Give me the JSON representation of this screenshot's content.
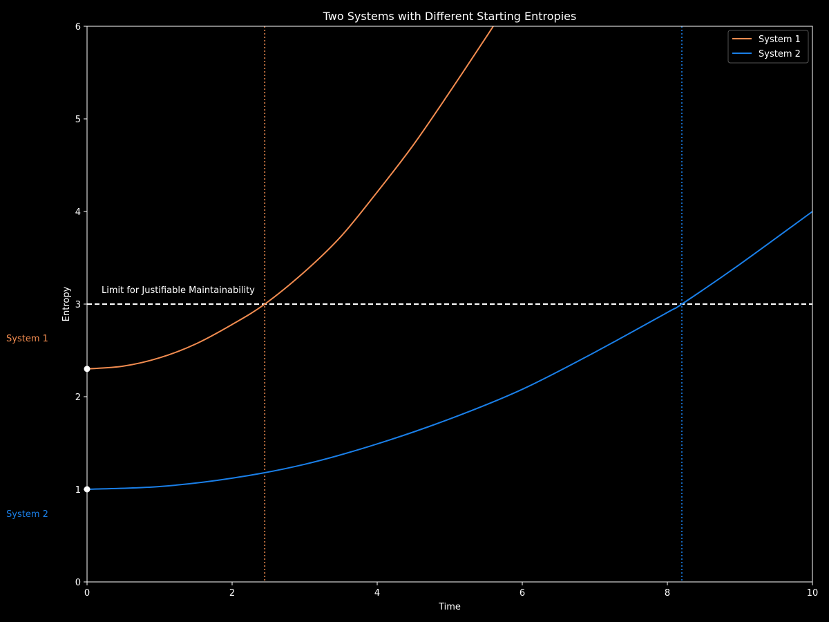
{
  "chart_data": {
    "type": "line",
    "title": "Two Systems with Different Starting Entropies",
    "xlabel": "Time",
    "ylabel": "Entropy",
    "xlim": [
      0,
      10
    ],
    "ylim": [
      0,
      6
    ],
    "x_ticks": [
      0,
      2,
      4,
      6,
      8,
      10
    ],
    "y_ticks": [
      0,
      1,
      2,
      3,
      4,
      5,
      6
    ],
    "grid": false,
    "legend_position": "top-right",
    "background": "#000000",
    "foreground": "#ffffff",
    "series": [
      {
        "name": "System 1",
        "color": "#f28c50",
        "x": [
          0,
          0.5,
          1,
          1.5,
          2,
          2.45,
          3,
          3.5,
          4,
          4.5,
          5,
          5.5,
          5.6
        ],
        "y": [
          2.3,
          2.33,
          2.42,
          2.57,
          2.78,
          3.0,
          3.35,
          3.73,
          4.21,
          4.72,
          5.29,
          5.88,
          6.0
        ],
        "start": {
          "x": 0,
          "y": 2.3
        },
        "crossing_x": 2.45,
        "side_label": "System 1"
      },
      {
        "name": "System 2",
        "color": "#1a7fe8",
        "x": [
          0,
          1,
          2,
          3,
          4,
          5,
          6,
          7,
          8,
          8.2,
          9,
          10
        ],
        "y": [
          1.0,
          1.03,
          1.12,
          1.27,
          1.49,
          1.76,
          2.08,
          2.48,
          2.91,
          3.0,
          3.43,
          4.0
        ],
        "start": {
          "x": 0,
          "y": 1.0
        },
        "crossing_x": 8.2,
        "side_label": "System 2"
      }
    ],
    "threshold": {
      "y": 3,
      "color": "#ffffff",
      "label": "Limit for Justifiable Maintainability",
      "label_x": 0.2
    }
  }
}
